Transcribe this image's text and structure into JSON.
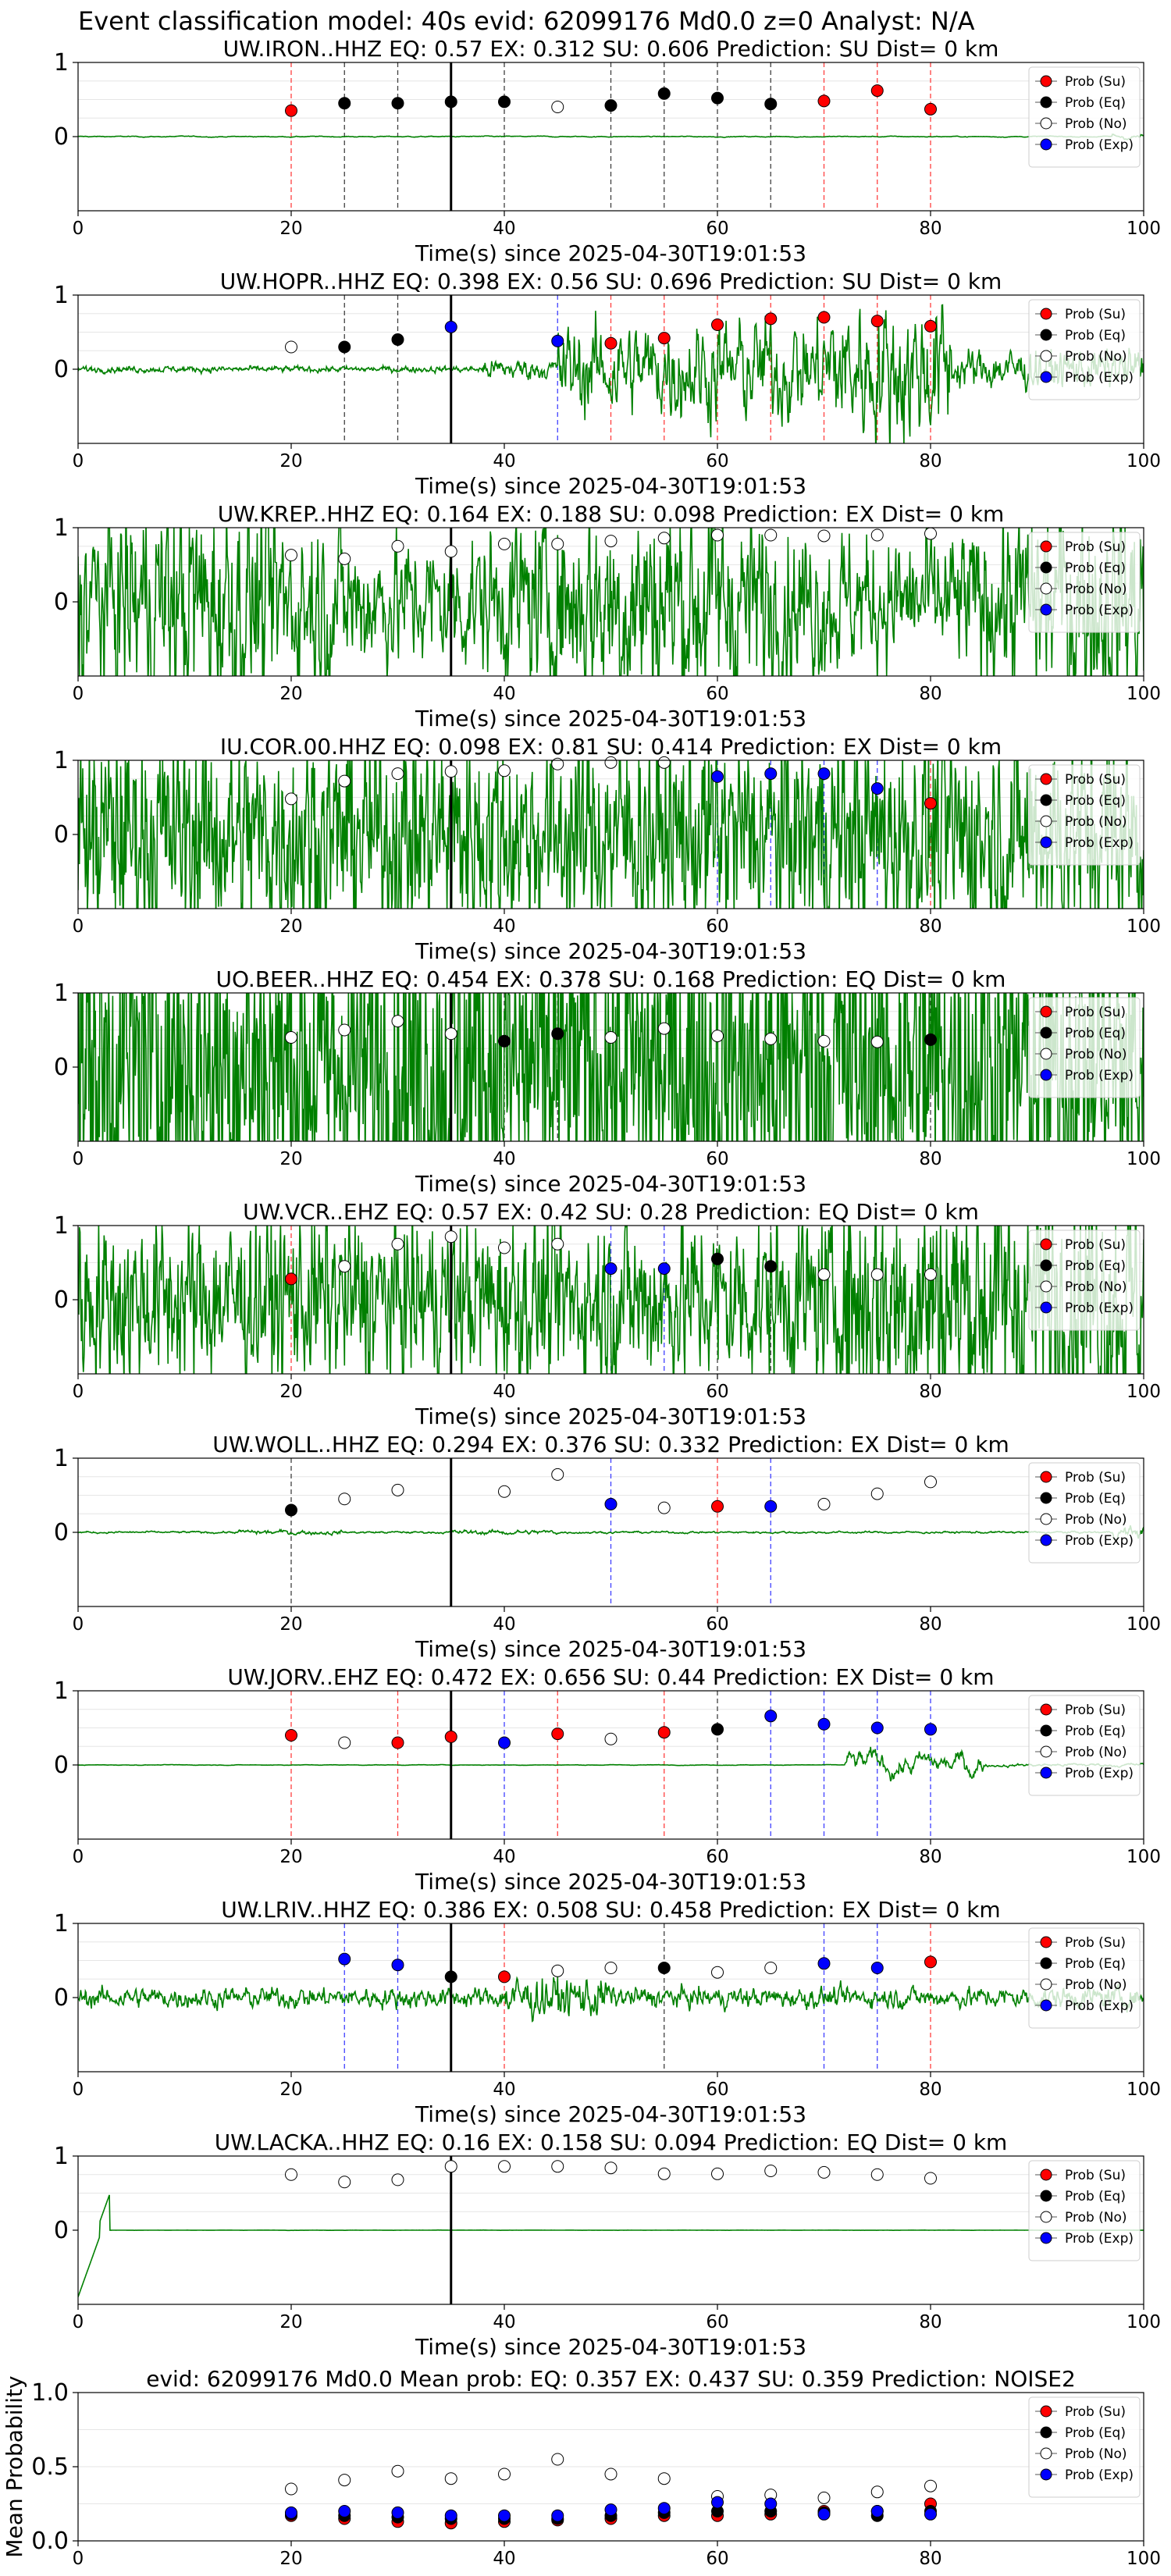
{
  "figure": {
    "title": "Event classification model: 40s evid: 62099176 Md0.0 z=0 Analyst: N/A",
    "x_axis_label": "Time(s) since 2025-04-30T19:01:53"
  },
  "legend": {
    "entries": [
      {
        "label": "Prob (Su)",
        "color": "#ff0000",
        "fill": true
      },
      {
        "label": "Prob (Eq)",
        "color": "#000000",
        "fill": true
      },
      {
        "label": "Prob (No)",
        "color": "#ffffff",
        "fill": false
      },
      {
        "label": "Prob (Exp)",
        "color": "#0000ff",
        "fill": true
      }
    ]
  },
  "colors": {
    "waveform": "#008000",
    "su": "#ff0000",
    "eq": "#000000",
    "no": "#ffffff",
    "exp": "#0000ff",
    "reference_line": "#000000"
  },
  "chart_data": [
    {
      "type": "scatter",
      "title": "UW.IRON..HHZ   EQ: 0.57   EX: 0.312   SU: 0.606   Prediction: SU    Dist= 0 km",
      "xlabel": "Time(s) since 2025-04-30T19:01:53",
      "xlim": [
        0,
        100
      ],
      "ylim": [
        -1,
        1
      ],
      "xticks": [
        0,
        20,
        40,
        60,
        80,
        100
      ],
      "yticks": [
        0,
        1
      ],
      "reference_time": 35,
      "waveform_level": 0.1,
      "points": [
        {
          "x": 20,
          "y": 0.35,
          "class": "su"
        },
        {
          "x": 25,
          "y": 0.45,
          "class": "eq"
        },
        {
          "x": 30,
          "y": 0.45,
          "class": "eq"
        },
        {
          "x": 35,
          "y": 0.47,
          "class": "eq"
        },
        {
          "x": 40,
          "y": 0.47,
          "class": "eq"
        },
        {
          "x": 45,
          "y": 0.4,
          "class": "no"
        },
        {
          "x": 50,
          "y": 0.42,
          "class": "eq"
        },
        {
          "x": 55,
          "y": 0.58,
          "class": "eq"
        },
        {
          "x": 60,
          "y": 0.52,
          "class": "eq"
        },
        {
          "x": 65,
          "y": 0.44,
          "class": "eq"
        },
        {
          "x": 70,
          "y": 0.48,
          "class": "su"
        },
        {
          "x": 75,
          "y": 0.62,
          "class": "su"
        },
        {
          "x": 80,
          "y": 0.37,
          "class": "su"
        }
      ]
    },
    {
      "type": "scatter",
      "title": "UW.HOPR..HHZ   EQ: 0.398   EX: 0.56   SU: 0.696   Prediction: SU    Dist= 0 km",
      "xlabel": "Time(s) since 2025-04-30T19:01:53",
      "xlim": [
        0,
        100
      ],
      "ylim": [
        -1,
        1
      ],
      "xticks": [
        0,
        20,
        40,
        60,
        80,
        100
      ],
      "yticks": [
        0,
        1
      ],
      "reference_time": 35,
      "waveform_level": 0.55,
      "points": [
        {
          "x": 20,
          "y": 0.3,
          "class": "no"
        },
        {
          "x": 25,
          "y": 0.3,
          "class": "eq"
        },
        {
          "x": 30,
          "y": 0.4,
          "class": "eq"
        },
        {
          "x": 35,
          "y": 0.57,
          "class": "exp"
        },
        {
          "x": 45,
          "y": 0.38,
          "class": "exp"
        },
        {
          "x": 50,
          "y": 0.35,
          "class": "su"
        },
        {
          "x": 55,
          "y": 0.42,
          "class": "su"
        },
        {
          "x": 60,
          "y": 0.6,
          "class": "su"
        },
        {
          "x": 65,
          "y": 0.68,
          "class": "su"
        },
        {
          "x": 70,
          "y": 0.7,
          "class": "su"
        },
        {
          "x": 75,
          "y": 0.65,
          "class": "su"
        },
        {
          "x": 80,
          "y": 0.58,
          "class": "su"
        }
      ]
    },
    {
      "type": "scatter",
      "title": "UW.KREP..HHZ   EQ: 0.164   EX: 0.188   SU: 0.098   Prediction: EX    Dist= 0 km",
      "xlabel": "Time(s) since 2025-04-30T19:01:53",
      "xlim": [
        0,
        100
      ],
      "ylim": [
        -1,
        1
      ],
      "xticks": [
        0,
        20,
        40,
        60,
        80,
        100
      ],
      "yticks": [
        0,
        1
      ],
      "reference_time": 35,
      "waveform_level": 0.75,
      "points": [
        {
          "x": 20,
          "y": 0.63,
          "class": "no"
        },
        {
          "x": 25,
          "y": 0.58,
          "class": "no"
        },
        {
          "x": 30,
          "y": 0.75,
          "class": "no"
        },
        {
          "x": 35,
          "y": 0.68,
          "class": "no"
        },
        {
          "x": 40,
          "y": 0.78,
          "class": "no"
        },
        {
          "x": 45,
          "y": 0.78,
          "class": "no"
        },
        {
          "x": 50,
          "y": 0.82,
          "class": "no"
        },
        {
          "x": 55,
          "y": 0.86,
          "class": "no"
        },
        {
          "x": 60,
          "y": 0.9,
          "class": "no"
        },
        {
          "x": 65,
          "y": 0.9,
          "class": "no"
        },
        {
          "x": 70,
          "y": 0.89,
          "class": "no"
        },
        {
          "x": 75,
          "y": 0.9,
          "class": "no"
        },
        {
          "x": 80,
          "y": 0.92,
          "class": "no"
        }
      ]
    },
    {
      "type": "scatter",
      "title": "IU.COR.00.HHZ   EQ: 0.098   EX: 0.81   SU: 0.414   Prediction: EX    Dist= 0 km",
      "xlabel": "Time(s) since 2025-04-30T19:01:53",
      "xlim": [
        0,
        100
      ],
      "ylim": [
        -1,
        1
      ],
      "xticks": [
        0,
        20,
        40,
        60,
        80,
        100
      ],
      "yticks": [
        0,
        1
      ],
      "reference_time": 35,
      "waveform_level": 0.7,
      "points": [
        {
          "x": 20,
          "y": 0.48,
          "class": "no"
        },
        {
          "x": 25,
          "y": 0.72,
          "class": "no"
        },
        {
          "x": 30,
          "y": 0.82,
          "class": "no"
        },
        {
          "x": 35,
          "y": 0.85,
          "class": "no"
        },
        {
          "x": 40,
          "y": 0.86,
          "class": "no"
        },
        {
          "x": 45,
          "y": 0.95,
          "class": "no"
        },
        {
          "x": 50,
          "y": 0.97,
          "class": "no"
        },
        {
          "x": 55,
          "y": 0.97,
          "class": "no"
        },
        {
          "x": 60,
          "y": 0.78,
          "class": "exp"
        },
        {
          "x": 65,
          "y": 0.82,
          "class": "exp"
        },
        {
          "x": 70,
          "y": 0.82,
          "class": "exp"
        },
        {
          "x": 75,
          "y": 0.62,
          "class": "exp"
        },
        {
          "x": 80,
          "y": 0.42,
          "class": "su"
        }
      ]
    },
    {
      "type": "scatter",
      "title": "UO.BEER..HHZ   EQ: 0.454   EX: 0.378   SU: 0.168   Prediction: EQ    Dist= 0 km",
      "xlabel": "Time(s) since 2025-04-30T19:01:53",
      "xlim": [
        0,
        100
      ],
      "ylim": [
        -1,
        1
      ],
      "xticks": [
        0,
        20,
        40,
        60,
        80,
        100
      ],
      "yticks": [
        0,
        1
      ],
      "reference_time": 35,
      "waveform_level": 0.8,
      "points": [
        {
          "x": 20,
          "y": 0.4,
          "class": "no"
        },
        {
          "x": 25,
          "y": 0.5,
          "class": "no"
        },
        {
          "x": 30,
          "y": 0.62,
          "class": "no"
        },
        {
          "x": 35,
          "y": 0.45,
          "class": "no"
        },
        {
          "x": 40,
          "y": 0.35,
          "class": "eq"
        },
        {
          "x": 45,
          "y": 0.45,
          "class": "eq"
        },
        {
          "x": 50,
          "y": 0.4,
          "class": "no"
        },
        {
          "x": 55,
          "y": 0.52,
          "class": "no"
        },
        {
          "x": 60,
          "y": 0.42,
          "class": "no"
        },
        {
          "x": 65,
          "y": 0.38,
          "class": "no"
        },
        {
          "x": 70,
          "y": 0.35,
          "class": "no"
        },
        {
          "x": 75,
          "y": 0.34,
          "class": "no"
        },
        {
          "x": 80,
          "y": 0.37,
          "class": "eq"
        }
      ]
    },
    {
      "type": "scatter",
      "title": "UW.VCR..EHZ   EQ: 0.57   EX: 0.42   SU: 0.28   Prediction: EQ    Dist= 0 km",
      "xlabel": "Time(s) since 2025-04-30T19:01:53",
      "xlim": [
        0,
        100
      ],
      "ylim": [
        -1,
        1
      ],
      "xticks": [
        0,
        20,
        40,
        60,
        80,
        100
      ],
      "yticks": [
        0,
        1
      ],
      "reference_time": 35,
      "waveform_level": 0.65,
      "points": [
        {
          "x": 20,
          "y": 0.28,
          "class": "su"
        },
        {
          "x": 25,
          "y": 0.45,
          "class": "no"
        },
        {
          "x": 30,
          "y": 0.75,
          "class": "no"
        },
        {
          "x": 35,
          "y": 0.85,
          "class": "no"
        },
        {
          "x": 40,
          "y": 0.7,
          "class": "no"
        },
        {
          "x": 45,
          "y": 0.75,
          "class": "no"
        },
        {
          "x": 50,
          "y": 0.42,
          "class": "exp"
        },
        {
          "x": 55,
          "y": 0.42,
          "class": "exp"
        },
        {
          "x": 60,
          "y": 0.55,
          "class": "eq"
        },
        {
          "x": 65,
          "y": 0.45,
          "class": "eq"
        },
        {
          "x": 70,
          "y": 0.34,
          "class": "no"
        },
        {
          "x": 75,
          "y": 0.34,
          "class": "no"
        },
        {
          "x": 80,
          "y": 0.34,
          "class": "no"
        }
      ]
    },
    {
      "type": "scatter",
      "title": "UW.WOLL..HHZ   EQ: 0.294   EX: 0.376   SU: 0.332   Prediction: EX    Dist= 0 km",
      "xlabel": "Time(s) since 2025-04-30T19:01:53",
      "xlim": [
        0,
        100
      ],
      "ylim": [
        -1,
        1
      ],
      "xticks": [
        0,
        20,
        40,
        60,
        80,
        100
      ],
      "yticks": [
        0,
        1
      ],
      "reference_time": 35,
      "waveform_level": 0.15,
      "points": [
        {
          "x": 20,
          "y": 0.3,
          "class": "eq"
        },
        {
          "x": 25,
          "y": 0.45,
          "class": "no"
        },
        {
          "x": 30,
          "y": 0.57,
          "class": "no"
        },
        {
          "x": 40,
          "y": 0.55,
          "class": "no"
        },
        {
          "x": 45,
          "y": 0.78,
          "class": "no"
        },
        {
          "x": 50,
          "y": 0.38,
          "class": "exp"
        },
        {
          "x": 55,
          "y": 0.33,
          "class": "no"
        },
        {
          "x": 60,
          "y": 0.35,
          "class": "su"
        },
        {
          "x": 65,
          "y": 0.35,
          "class": "exp"
        },
        {
          "x": 70,
          "y": 0.38,
          "class": "no"
        },
        {
          "x": 75,
          "y": 0.52,
          "class": "no"
        },
        {
          "x": 80,
          "y": 0.68,
          "class": "no"
        }
      ]
    },
    {
      "type": "scatter",
      "title": "UW.JORV..EHZ   EQ: 0.472   EX: 0.656   SU: 0.44   Prediction: EX    Dist= 0 km",
      "xlabel": "Time(s) since 2025-04-30T19:01:53",
      "xlim": [
        0,
        100
      ],
      "ylim": [
        -1,
        1
      ],
      "xticks": [
        0,
        20,
        40,
        60,
        80,
        100
      ],
      "yticks": [
        0,
        1
      ],
      "reference_time": 35,
      "waveform_level": 0.2,
      "points": [
        {
          "x": 20,
          "y": 0.4,
          "class": "su"
        },
        {
          "x": 25,
          "y": 0.3,
          "class": "no"
        },
        {
          "x": 30,
          "y": 0.3,
          "class": "su"
        },
        {
          "x": 35,
          "y": 0.38,
          "class": "su"
        },
        {
          "x": 40,
          "y": 0.3,
          "class": "exp"
        },
        {
          "x": 45,
          "y": 0.42,
          "class": "su"
        },
        {
          "x": 50,
          "y": 0.35,
          "class": "no"
        },
        {
          "x": 55,
          "y": 0.44,
          "class": "su"
        },
        {
          "x": 60,
          "y": 0.48,
          "class": "eq"
        },
        {
          "x": 65,
          "y": 0.66,
          "class": "exp"
        },
        {
          "x": 70,
          "y": 0.55,
          "class": "exp"
        },
        {
          "x": 75,
          "y": 0.5,
          "class": "exp"
        },
        {
          "x": 80,
          "y": 0.48,
          "class": "exp"
        }
      ]
    },
    {
      "type": "scatter",
      "title": "UW.LRIV..HHZ   EQ: 0.386   EX: 0.508   SU: 0.458   Prediction: EX    Dist= 0 km",
      "xlabel": "Time(s) since 2025-04-30T19:01:53",
      "xlim": [
        0,
        100
      ],
      "ylim": [
        -1,
        1
      ],
      "xticks": [
        0,
        20,
        40,
        60,
        80,
        100
      ],
      "yticks": [
        0,
        1
      ],
      "reference_time": 35,
      "waveform_level": 0.3,
      "points": [
        {
          "x": 25,
          "y": 0.52,
          "class": "exp"
        },
        {
          "x": 30,
          "y": 0.44,
          "class": "exp"
        },
        {
          "x": 35,
          "y": 0.28,
          "class": "eq"
        },
        {
          "x": 40,
          "y": 0.28,
          "class": "su"
        },
        {
          "x": 45,
          "y": 0.36,
          "class": "no"
        },
        {
          "x": 50,
          "y": 0.4,
          "class": "no"
        },
        {
          "x": 55,
          "y": 0.4,
          "class": "eq"
        },
        {
          "x": 60,
          "y": 0.34,
          "class": "no"
        },
        {
          "x": 65,
          "y": 0.4,
          "class": "no"
        },
        {
          "x": 70,
          "y": 0.46,
          "class": "exp"
        },
        {
          "x": 75,
          "y": 0.4,
          "class": "exp"
        },
        {
          "x": 80,
          "y": 0.48,
          "class": "su"
        }
      ]
    },
    {
      "type": "scatter",
      "title": "UW.LACKA..HHZ   EQ: 0.16   EX: 0.158   SU: 0.094   Prediction: EQ    Dist= 0 km",
      "xlabel": "Time(s) since 2025-04-30T19:01:53",
      "xlim": [
        0,
        100
      ],
      "ylim": [
        -1,
        1
      ],
      "xticks": [
        0,
        20,
        40,
        60,
        80,
        100
      ],
      "yticks": [
        0,
        1
      ],
      "reference_time": 35,
      "waveform_level": 0.05,
      "points": [
        {
          "x": 20,
          "y": 0.75,
          "class": "no"
        },
        {
          "x": 25,
          "y": 0.65,
          "class": "no"
        },
        {
          "x": 30,
          "y": 0.68,
          "class": "no"
        },
        {
          "x": 35,
          "y": 0.86,
          "class": "no"
        },
        {
          "x": 40,
          "y": 0.86,
          "class": "no"
        },
        {
          "x": 45,
          "y": 0.86,
          "class": "no"
        },
        {
          "x": 50,
          "y": 0.84,
          "class": "no"
        },
        {
          "x": 55,
          "y": 0.76,
          "class": "no"
        },
        {
          "x": 60,
          "y": 0.76,
          "class": "no"
        },
        {
          "x": 65,
          "y": 0.8,
          "class": "no"
        },
        {
          "x": 70,
          "y": 0.78,
          "class": "no"
        },
        {
          "x": 75,
          "y": 0.75,
          "class": "no"
        },
        {
          "x": 80,
          "y": 0.7,
          "class": "no"
        }
      ]
    },
    {
      "type": "scatter",
      "title": "evid: 62099176  Md0.0   Mean prob:   EQ: 0.357  EX: 0.437  SU: 0.359   Prediction: NOISE2",
      "xlabel": "",
      "ylabel": "Mean Probability",
      "xlim": [
        0,
        100
      ],
      "ylim": [
        0,
        1
      ],
      "xticks": [
        0,
        20,
        40,
        60,
        80,
        100
      ],
      "yticks": [
        0.0,
        0.5,
        1.0
      ],
      "series": [
        {
          "name": "Prob (Su)",
          "class": "su",
          "x": [
            20,
            25,
            30,
            35,
            40,
            45,
            50,
            55,
            60,
            65,
            70,
            75,
            80
          ],
          "values": [
            0.17,
            0.15,
            0.13,
            0.12,
            0.13,
            0.14,
            0.15,
            0.17,
            0.17,
            0.18,
            0.2,
            0.2,
            0.25
          ]
        },
        {
          "name": "Prob (Eq)",
          "class": "eq",
          "x": [
            20,
            25,
            30,
            35,
            40,
            45,
            50,
            55,
            60,
            65,
            70,
            75,
            80
          ],
          "values": [
            0.18,
            0.17,
            0.16,
            0.15,
            0.15,
            0.15,
            0.17,
            0.19,
            0.2,
            0.2,
            0.19,
            0.17,
            0.2
          ]
        },
        {
          "name": "Prob (No)",
          "class": "no",
          "x": [
            20,
            25,
            30,
            35,
            40,
            45,
            50,
            55,
            60,
            65,
            70,
            75,
            80
          ],
          "values": [
            0.35,
            0.41,
            0.47,
            0.42,
            0.45,
            0.55,
            0.45,
            0.42,
            0.3,
            0.31,
            0.29,
            0.33,
            0.37
          ]
        },
        {
          "name": "Prob (Exp)",
          "class": "exp",
          "x": [
            20,
            25,
            30,
            35,
            40,
            45,
            50,
            55,
            60,
            65,
            70,
            75,
            80
          ],
          "values": [
            0.19,
            0.2,
            0.19,
            0.17,
            0.17,
            0.17,
            0.21,
            0.22,
            0.26,
            0.25,
            0.18,
            0.2,
            0.18
          ]
        }
      ]
    }
  ]
}
